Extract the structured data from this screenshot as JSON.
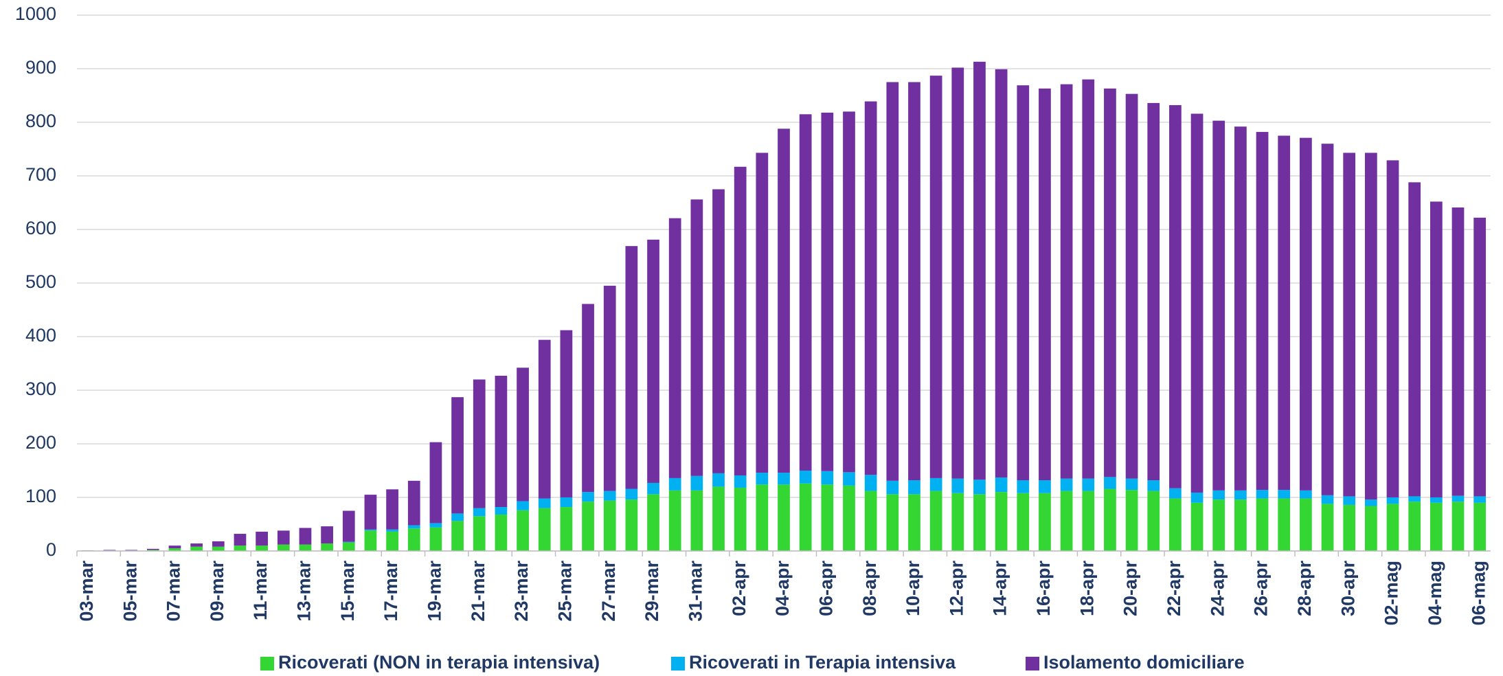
{
  "chart_data": {
    "type": "stacked_bar",
    "categories": [
      "03-mar",
      null,
      "05-mar",
      null,
      "07-mar",
      null,
      "09-mar",
      null,
      "11-mar",
      null,
      "13-mar",
      null,
      "15-mar",
      null,
      "17-mar",
      null,
      "19-mar",
      null,
      "21-mar",
      null,
      "23-mar",
      null,
      "25-mar",
      null,
      "27-mar",
      null,
      "29-mar",
      null,
      "31-mar",
      null,
      "02-apr",
      null,
      "04-apr",
      null,
      "06-apr",
      null,
      "08-apr",
      null,
      "10-apr",
      null,
      "12-apr",
      null,
      "14-apr",
      null,
      "16-apr",
      null,
      "18-apr",
      null,
      "20-apr",
      null,
      "22-apr",
      null,
      "24-apr",
      null,
      "26-apr",
      null,
      "28-apr",
      null,
      "30-apr",
      null,
      "02-mag",
      null,
      "04-mag",
      null,
      "06-mag"
    ],
    "series": [
      {
        "name": "Ricoverati (NON in terapia intensiva)",
        "color": "#33d633",
        "values": [
          0,
          1,
          1,
          2,
          5,
          8,
          8,
          10,
          10,
          12,
          12,
          14,
          16,
          38,
          36,
          42,
          44,
          56,
          65,
          68,
          76,
          80,
          82,
          92,
          94,
          96,
          106,
          113,
          113,
          120,
          118,
          124,
          124,
          126,
          124,
          122,
          112,
          106,
          106,
          112,
          108,
          106,
          110,
          108,
          108,
          112,
          112,
          116,
          114,
          112,
          98,
          90,
          96,
          96,
          98,
          98,
          98,
          88,
          86,
          84,
          88,
          92,
          90,
          92,
          90
        ]
      },
      {
        "name": "Ricoverati in Terapia intensiva",
        "color": "#00b0f0",
        "values": [
          0,
          0,
          0,
          0,
          0,
          0,
          0,
          0,
          0,
          0,
          0,
          0,
          1,
          2,
          4,
          6,
          8,
          14,
          15,
          14,
          17,
          18,
          18,
          18,
          18,
          20,
          21,
          23,
          27,
          25,
          23,
          22,
          22,
          24,
          25,
          25,
          30,
          25,
          26,
          24,
          27,
          27,
          27,
          24,
          24,
          23,
          23,
          22,
          21,
          20,
          19,
          19,
          17,
          17,
          16,
          16,
          15,
          16,
          16,
          12,
          12,
          10,
          10,
          11,
          12
        ]
      },
      {
        "name": "Isolamento domiciliare",
        "color": "#7030a0",
        "values": [
          1,
          1,
          1,
          2,
          5,
          6,
          10,
          22,
          26,
          26,
          31,
          32,
          58,
          65,
          75,
          83,
          151,
          217,
          240,
          245,
          249,
          296,
          312,
          351,
          383,
          453,
          454,
          485,
          516,
          530,
          576,
          597,
          642,
          665,
          669,
          673,
          697,
          744,
          743,
          751,
          767,
          780,
          762,
          737,
          731,
          736,
          745,
          725,
          718,
          704,
          715,
          707,
          690,
          679,
          668,
          661,
          658,
          656,
          641,
          647,
          629,
          586,
          552,
          538,
          520
        ]
      }
    ],
    "ylim": [
      0,
      1000
    ],
    "yticks": [
      0,
      100,
      200,
      300,
      400,
      500,
      600,
      700,
      800,
      900,
      1000
    ],
    "grid": true,
    "legend": "bottom"
  }
}
